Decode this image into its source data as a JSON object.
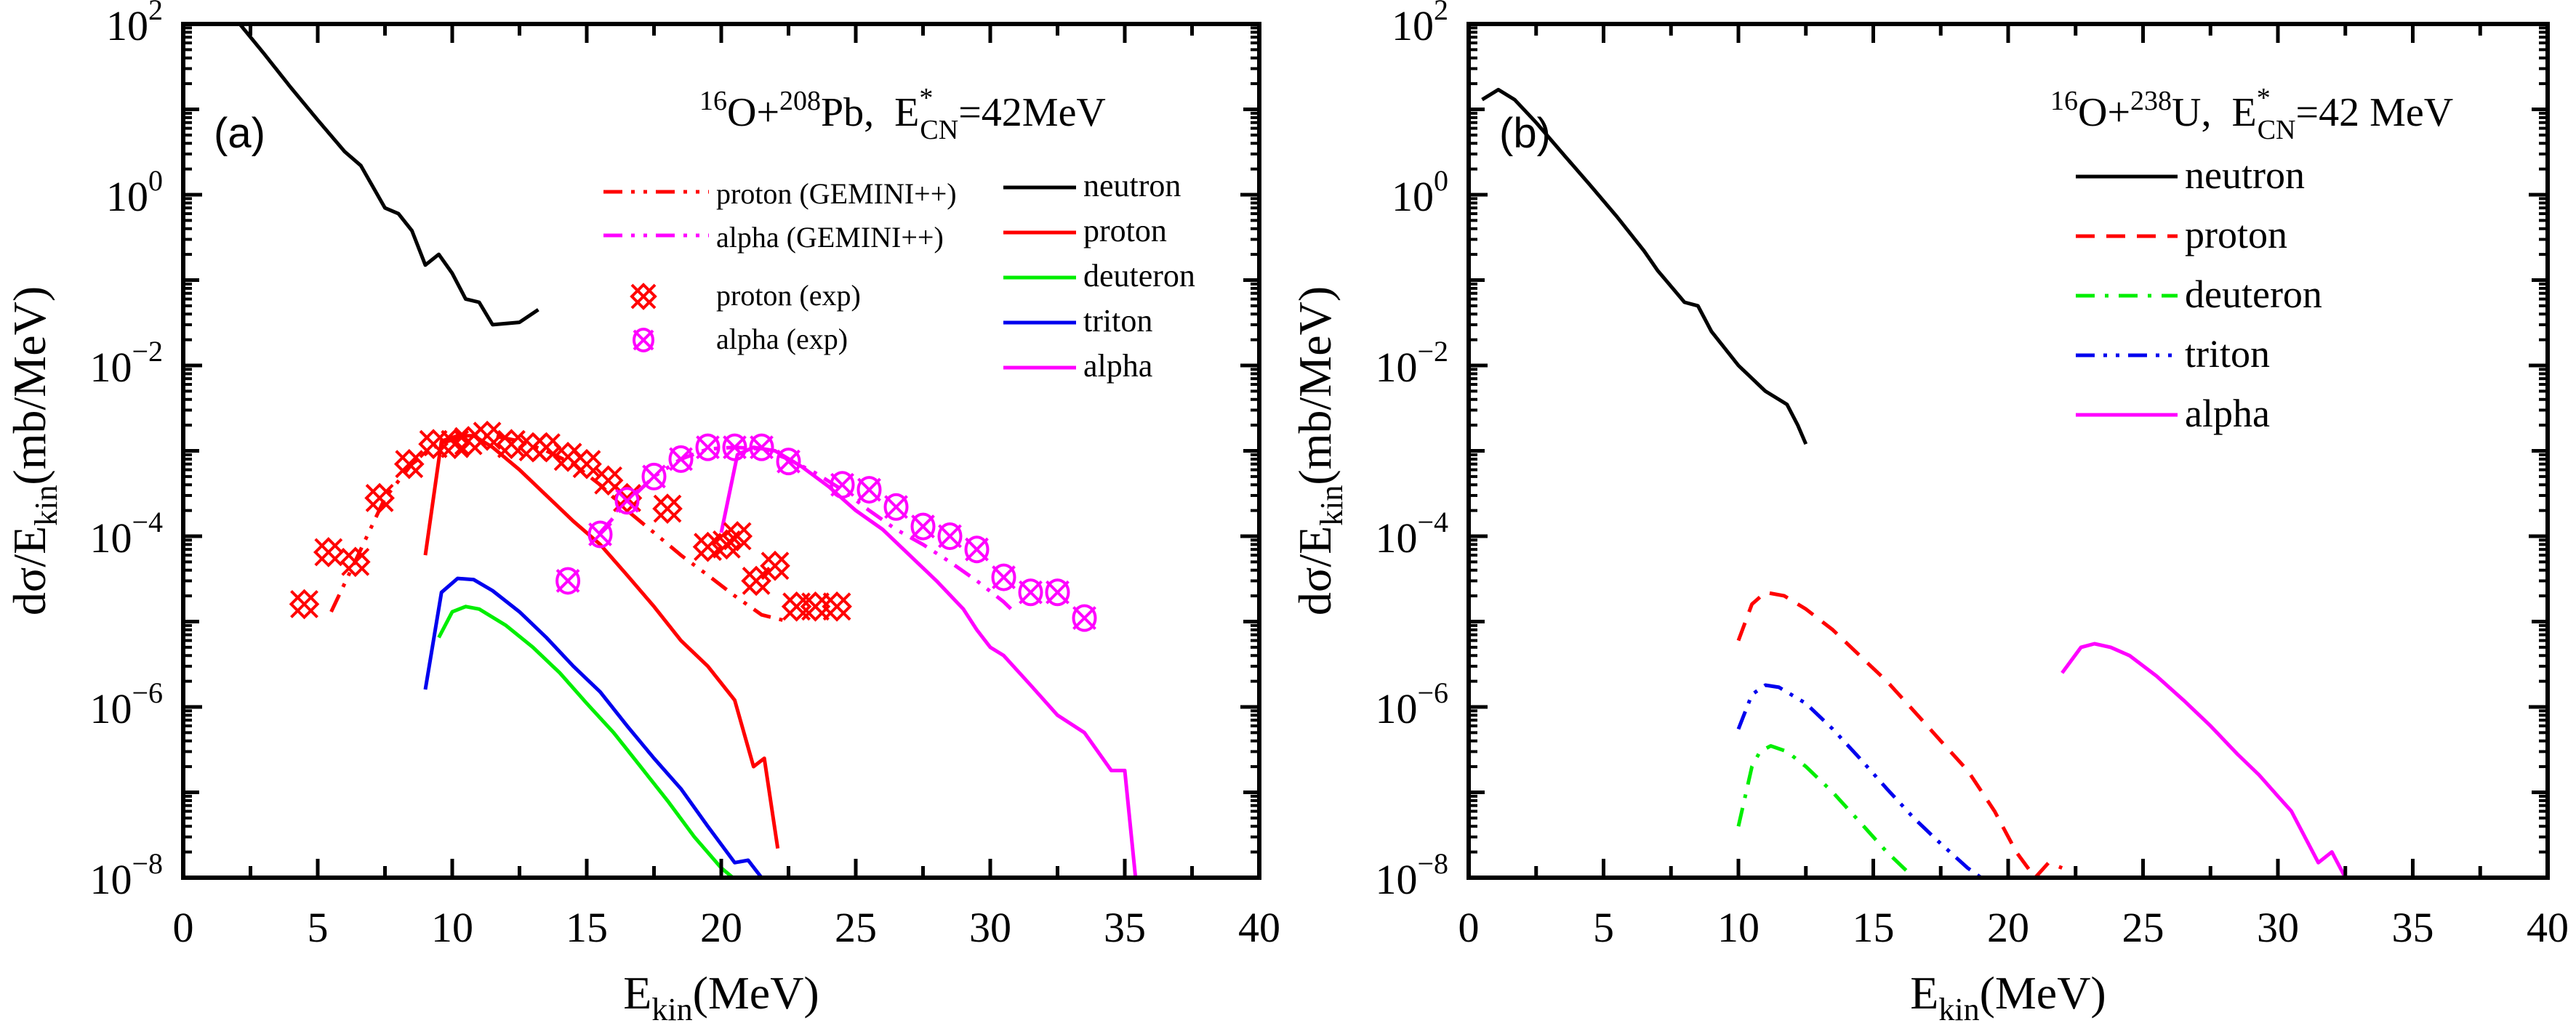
{
  "chart_data": [
    {
      "type": "line",
      "panel_label": "(a)",
      "title": "16O+208Pb, E*CN=42MeV",
      "title_parts": {
        "a1": "16",
        "el1": "O+",
        "a2": "208",
        "el2": "Pb,  E",
        "sup": "*",
        "sub": "CN",
        "rest": "=42MeV"
      },
      "xlabel": {
        "main": "E",
        "sub": "kin",
        "rest": "(MeV)"
      },
      "ylabel": {
        "main": "dσ/E",
        "sub": "kin",
        "rest": "(mb/MeV)"
      },
      "xlim": [
        0,
        40
      ],
      "ylim": [
        1e-08,
        100.0
      ],
      "yscale": "log",
      "x_ticks": [
        "0",
        "5",
        "10",
        "15",
        "20",
        "25",
        "30",
        "35",
        "40"
      ],
      "y_ticks": [
        {
          "base": "10",
          "exp": "2"
        },
        {
          "base": "10",
          "exp": "0"
        },
        {
          "base": "10",
          "exp": "−2"
        },
        {
          "base": "10",
          "exp": "−4"
        },
        {
          "base": "10",
          "exp": "−6"
        },
        {
          "base": "10",
          "exp": "−8"
        }
      ],
      "legend_left_placement": "upper-middle",
      "legend_right_placement": "upper-right",
      "series": [
        {
          "name": "neutron",
          "color": "#000000",
          "style": "solid",
          "legend": "right",
          "x": [
            2.1,
            3,
            4,
            5,
            6,
            6.6,
            7.5,
            8.0,
            8.5,
            9.0,
            9.5,
            10.0,
            10.5,
            11.0,
            11.5,
            12.0,
            12.5,
            13.2
          ],
          "y": [
            100,
            45,
            18,
            7.5,
            3.2,
            2.2,
            0.7,
            0.6,
            0.38,
            0.15,
            0.2,
            0.12,
            0.06,
            0.055,
            0.03,
            0.031,
            0.032,
            0.045
          ]
        },
        {
          "name": "proton",
          "color": "#ff0000",
          "style": "solid",
          "legend": "right",
          "x": [
            9.0,
            9.6,
            10.2,
            10.8,
            11.5,
            12.5,
            13.5,
            14.5,
            15.5,
            16.5,
            17.5,
            18.5,
            19.5,
            20.5,
            21.2,
            21.6,
            22.1
          ],
          "y": [
            6e-05,
            0.0013,
            0.0015,
            0.0015,
            0.0011,
            0.0006,
            0.0003,
            0.00015,
            8e-05,
            3.5e-05,
            1.5e-05,
            6e-06,
            3e-06,
            1.2e-06,
            2e-07,
            2.5e-07,
            2.2e-08
          ]
        },
        {
          "name": "deuteron",
          "color": "#00ee00",
          "style": "solid",
          "legend": "right",
          "x": [
            9.5,
            10,
            10.5,
            11,
            12,
            13,
            14,
            15,
            16,
            17,
            18,
            19,
            20,
            20.8,
            21.3,
            21.6
          ],
          "y": [
            6.5e-06,
            1.3e-05,
            1.5e-05,
            1.4e-05,
            9e-06,
            5e-06,
            2.5e-06,
            1.1e-06,
            5e-07,
            2e-07,
            8e-08,
            3e-08,
            1.3e-08,
            8e-09,
            4e-09,
            1e-08
          ]
        },
        {
          "name": "triton",
          "color": "#0000ee",
          "style": "solid",
          "legend": "right",
          "x": [
            9.0,
            9.6,
            10.2,
            10.8,
            11.5,
            12.5,
            13.5,
            14.5,
            15.5,
            16.5,
            17.5,
            18.5,
            19.5,
            20.5,
            21.0,
            21.5,
            22.0
          ],
          "y": [
            1.6e-06,
            2.2e-05,
            3.2e-05,
            3.1e-05,
            2.3e-05,
            1.3e-05,
            6.5e-06,
            3e-06,
            1.5e-06,
            6e-07,
            2.5e-07,
            1.1e-07,
            4e-08,
            1.5e-08,
            1.6e-08,
            1e-08,
            1e-08
          ]
        },
        {
          "name": "alpha",
          "color": "#ff00ff",
          "style": "solid",
          "legend": "right",
          "x": [
            20.0,
            20.6,
            21.2,
            22.0,
            23,
            24,
            25,
            26,
            27,
            28,
            29,
            29.5,
            30,
            30.5,
            31.5,
            32.5,
            33.5,
            34.0,
            34.5,
            35.0,
            35.4
          ],
          "y": [
            0.00011,
            0.0009,
            0.0011,
            0.001,
            0.00065,
            0.00038,
            0.0002,
            0.00012,
            6e-05,
            3e-05,
            1.4e-05,
            8e-06,
            5e-06,
            4e-06,
            1.8e-06,
            8e-07,
            5e-07,
            3e-07,
            1.8e-07,
            1.8e-07,
            1e-08
          ]
        },
        {
          "name": "proton (GEMINI++)",
          "color": "#ff0000",
          "style": "dashdotdot",
          "legend": "left",
          "x": [
            5.5,
            6.5,
            7.5,
            8.5,
            9.5,
            10.5,
            11.5,
            12.5,
            13.5,
            14.5,
            15.5,
            16.5,
            17.5,
            18.5,
            19.5,
            20.5,
            21.5,
            22.5
          ],
          "y": [
            1.3e-05,
            6e-05,
            0.00028,
            0.0007,
            0.0012,
            0.0015,
            0.0015,
            0.0013,
            0.001,
            0.0007,
            0.0004,
            0.0002,
            0.00011,
            6e-05,
            3.5e-05,
            2e-05,
            1.2e-05,
            1e-05
          ]
        },
        {
          "name": "alpha (GEMINI++)",
          "color": "#ff00ff",
          "style": "dashdotdot",
          "legend": "left",
          "x": [
            15.5,
            16.5,
            17.5,
            18.5,
            19.5,
            20.5,
            21.5,
            22.5,
            23.5,
            24.5,
            25.5,
            26.5,
            27.5,
            28.5,
            29.5,
            30.5,
            31
          ],
          "y": [
            0.00011,
            0.00025,
            0.0005,
            0.0008,
            0.00105,
            0.0011,
            0.00105,
            0.0008,
            0.00055,
            0.00035,
            0.0002,
            0.00012,
            8e-05,
            5e-05,
            3e-05,
            1.7e-05,
            1.2e-05
          ]
        },
        {
          "name": "proton (exp)",
          "color": "#ff0000",
          "style": "marker-cross-hatch",
          "legend": "left",
          "x": [
            4.5,
            5.4,
            6.4,
            7.3,
            8.4,
            9.3,
            10.1,
            10.6,
            11.3,
            12.2,
            13.0,
            13.5,
            14.3,
            15.0,
            15.8,
            16.5,
            18.0,
            19.5,
            20.2,
            20.6,
            21.3,
            22.0,
            22.8,
            23.5,
            24.3
          ],
          "y": [
            1.6e-05,
            6.5e-05,
            5e-05,
            0.00028,
            0.0007,
            0.0012,
            0.0012,
            0.0013,
            0.0015,
            0.0012,
            0.0011,
            0.0011,
            0.00085,
            0.0007,
            0.00045,
            0.00028,
            0.00021,
            7.5e-05,
            8e-05,
            0.0001,
            3e-05,
            4.5e-05,
            1.5e-05,
            1.5e-05,
            1.5e-05
          ]
        },
        {
          "name": "alpha (exp)",
          "color": "#ff00ff",
          "style": "marker-circle-x",
          "legend": "left",
          "x": [
            14.3,
            15.5,
            16.5,
            17.5,
            18.5,
            19.5,
            20.5,
            21.5,
            22.5,
            24.5,
            25.5,
            26.5,
            27.5,
            28.5,
            29.5,
            30.5,
            31.5,
            32.5,
            33.5
          ],
          "y": [
            3e-05,
            0.000105,
            0.00026,
            0.0005,
            0.0008,
            0.0011,
            0.0011,
            0.0011,
            0.00075,
            0.0004,
            0.00035,
            0.00022,
            0.00013,
            0.0001,
            7e-05,
            3.3e-05,
            2.2e-05,
            2.2e-05,
            1.1e-05
          ]
        }
      ]
    },
    {
      "type": "line",
      "panel_label": "(b)",
      "title": "16O+238U, E*CN=42 MeV",
      "title_parts": {
        "a1": "16",
        "el1": "O+",
        "a2": "238",
        "el2": "U,  E",
        "sup": "*",
        "sub": "CN",
        "rest": "=42 MeV"
      },
      "xlabel": {
        "main": "E",
        "sub": "kin",
        "rest": "(MeV)"
      },
      "ylabel": {
        "main": "dσ/E",
        "sub": "kin",
        "rest": "(mb/MeV)"
      },
      "xlim": [
        0,
        40
      ],
      "ylim": [
        1e-08,
        100.0
      ],
      "yscale": "log",
      "x_ticks": [
        "0",
        "5",
        "10",
        "15",
        "20",
        "25",
        "30",
        "35",
        "40"
      ],
      "y_ticks": [
        {
          "base": "10",
          "exp": "2"
        },
        {
          "base": "10",
          "exp": "0"
        },
        {
          "base": "10",
          "exp": "−2"
        },
        {
          "base": "10",
          "exp": "−4"
        },
        {
          "base": "10",
          "exp": "−6"
        },
        {
          "base": "10",
          "exp": "−8"
        }
      ],
      "legend_placement": "upper-right",
      "series": [
        {
          "name": "neutron",
          "color": "#000000",
          "style": "solid",
          "x": [
            0.5,
            1.1,
            1.7,
            2.5,
            3.5,
            4.5,
            5.5,
            6.5,
            7.0,
            8.0,
            8.5,
            9.0,
            10.0,
            11.0,
            11.8,
            12.2,
            12.5
          ],
          "y": [
            13,
            17,
            13,
            7,
            3,
            1.3,
            0.55,
            0.22,
            0.13,
            0.055,
            0.05,
            0.025,
            0.01,
            0.005,
            0.0035,
            0.002,
            0.0012
          ]
        },
        {
          "name": "proton",
          "color": "#ff0000",
          "style": "dashed",
          "x": [
            10.0,
            10.5,
            11.0,
            11.7,
            12.5,
            13.5,
            14.5,
            15.5,
            16.5,
            17.5,
            18.5,
            19.5,
            20.3,
            21.0,
            21.5,
            22.0
          ],
          "y": [
            6e-06,
            1.6e-05,
            2.2e-05,
            2e-05,
            1.4e-05,
            8e-06,
            4e-06,
            2e-06,
            9e-07,
            4e-07,
            1.8e-07,
            6e-08,
            2e-08,
            1e-08,
            1.5e-08,
            1.3e-08
          ]
        },
        {
          "name": "deuteron",
          "color": "#00ee00",
          "style": "dashdot",
          "x": [
            10.0,
            10.5,
            10.8,
            11.2,
            11.8,
            12.5,
            13.5,
            14.5,
            15.5,
            16.5,
            17.0
          ],
          "y": [
            4e-08,
            2e-07,
            3e-07,
            3.5e-07,
            3e-07,
            2e-07,
            1e-07,
            4.5e-08,
            2e-08,
            1e-08,
            8e-09
          ]
        },
        {
          "name": "triton",
          "color": "#0000ee",
          "style": "dashdotdot",
          "x": [
            10.0,
            10.5,
            11.0,
            11.5,
            12.5,
            13.5,
            14.5,
            15.5,
            16.5,
            17.5,
            18.5,
            19.0
          ],
          "y": [
            5.5e-07,
            1.4e-06,
            1.8e-06,
            1.7e-06,
            1.1e-06,
            5.5e-07,
            2.5e-07,
            1.1e-07,
            5e-08,
            2.5e-08,
            1.3e-08,
            1e-08
          ]
        },
        {
          "name": "alpha",
          "color": "#ff00ff",
          "style": "solid",
          "x": [
            22.0,
            22.7,
            23.2,
            23.8,
            24.5,
            25.5,
            26.5,
            27.5,
            28.5,
            29.3,
            30.0,
            30.5,
            31.5,
            32.0,
            32.5
          ],
          "y": [
            2.5e-06,
            5e-06,
            5.5e-06,
            5e-06,
            4e-06,
            2.3e-06,
            1.2e-06,
            6e-07,
            2.8e-07,
            1.6e-07,
            9e-08,
            6e-08,
            1.5e-08,
            2e-08,
            1e-08
          ]
        }
      ]
    }
  ]
}
